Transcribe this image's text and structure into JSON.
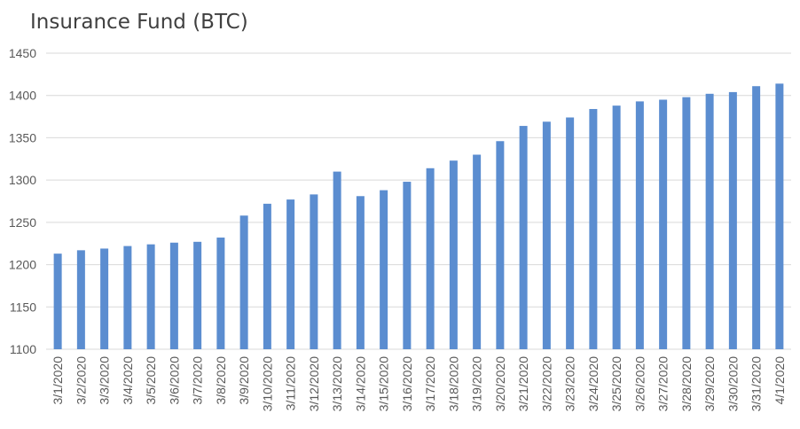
{
  "chart_data": {
    "type": "bar",
    "title": "Insurance Fund (BTC)",
    "xlabel": "",
    "ylabel": "",
    "ylim": [
      1100,
      1450
    ],
    "yticks": [
      1100,
      1150,
      1200,
      1250,
      1300,
      1350,
      1400,
      1450
    ],
    "grid": true,
    "legend": "none",
    "bar_color": "#5B8DD0",
    "grid_color": "#D9D9D9",
    "categories": [
      "3/1/2020",
      "3/2/2020",
      "3/3/2020",
      "3/4/2020",
      "3/5/2020",
      "3/6/2020",
      "3/7/2020",
      "3/8/2020",
      "3/9/2020",
      "3/10/2020",
      "3/11/2020",
      "3/12/2020",
      "3/13/2020",
      "3/14/2020",
      "3/15/2020",
      "3/16/2020",
      "3/17/2020",
      "3/18/2020",
      "3/19/2020",
      "3/20/2020",
      "3/21/2020",
      "3/22/2020",
      "3/23/2020",
      "3/24/2020",
      "3/25/2020",
      "3/26/2020",
      "3/27/2020",
      "3/28/2020",
      "3/29/2020",
      "3/30/2020",
      "3/31/2020",
      "4/1/2020"
    ],
    "values": [
      1213,
      1217,
      1219,
      1222,
      1224,
      1226,
      1227,
      1232,
      1258,
      1272,
      1277,
      1283,
      1310,
      1281,
      1288,
      1298,
      1314,
      1323,
      1330,
      1346,
      1364,
      1369,
      1374,
      1384,
      1388,
      1393,
      1395,
      1398,
      1402,
      1404,
      1411,
      1414
    ]
  }
}
